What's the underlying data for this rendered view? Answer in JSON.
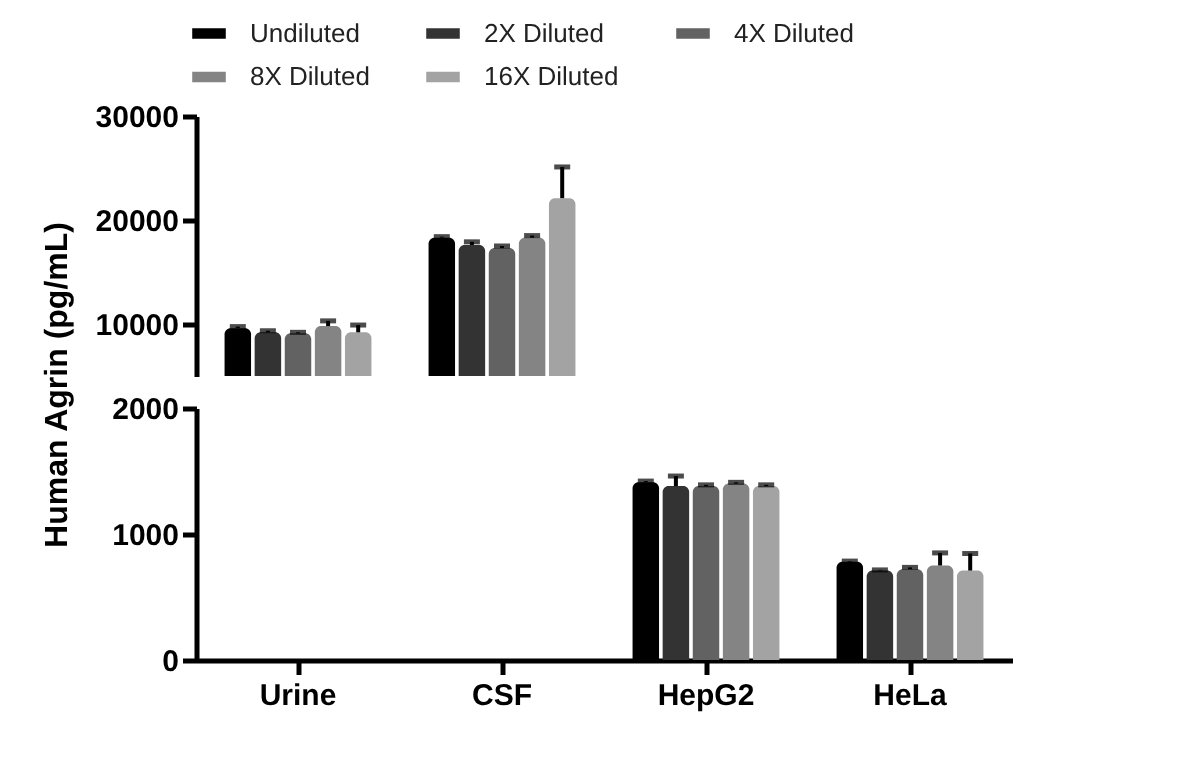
{
  "chart_data": [
    {
      "type": "bar",
      "categories": [
        null,
        null
      ],
      "ylim": [
        5000,
        30000
      ],
      "yticks": [
        10000,
        20000,
        30000
      ],
      "tick_labels": "y",
      "legend": "top",
      "series": [
        {
          "name": "Undiluted",
          "color": "#000000",
          "values": [
            9600,
            18300
          ],
          "errors": [
            [
              9600,
              9750
            ],
            [
              18300,
              18400
            ]
          ]
        },
        {
          "name": "2X Diluted",
          "color": "#333333",
          "values": [
            9200,
            17600
          ],
          "errors": [
            [
              9200,
              9350
            ],
            [
              17600,
              17900
            ]
          ]
        },
        {
          "name": "4X Diluted",
          "color": "#626262",
          "values": [
            9100,
            17300
          ],
          "errors": [
            [
              9100,
              9200
            ],
            [
              17300,
              17500
            ]
          ]
        },
        {
          "name": "8X Diluted",
          "color": "#848484",
          "values": [
            9800,
            18300
          ],
          "errors": [
            [
              9800,
              10300
            ],
            [
              18300,
              18500
            ]
          ]
        },
        {
          "name": "16X Diluted",
          "color": "#a3a3a3",
          "values": [
            9200,
            22100
          ],
          "errors": [
            [
              9200,
              9900
            ],
            [
              22100,
              25100
            ]
          ]
        }
      ]
    },
    {
      "type": "bar",
      "categories": [
        "Urine",
        "CSF",
        "HepG2",
        "HeLa"
      ],
      "ylabel": "Human Agrin (pg/mL)",
      "ylim": [
        0,
        2000
      ],
      "yticks": [
        0,
        1000,
        2000
      ],
      "series": [
        {
          "color": "#000000",
          "values": [
            null,
            null,
            1410,
            780
          ],
          "errors": [
            null,
            null,
            [
              1410,
              1420
            ],
            [
              780,
              785
            ]
          ]
        },
        {
          "color": "#333333",
          "values": [
            null,
            null,
            1380,
            710
          ],
          "errors": [
            null,
            null,
            [
              1380,
              1460
            ],
            [
              710,
              715
            ]
          ]
        },
        {
          "color": "#626262",
          "values": [
            null,
            null,
            1380,
            720
          ],
          "errors": [
            null,
            null,
            [
              1380,
              1390
            ],
            [
              720,
              735
            ]
          ]
        },
        {
          "color": "#848484",
          "values": [
            null,
            null,
            1400,
            750
          ],
          "errors": [
            null,
            null,
            [
              1400,
              1410
            ],
            [
              750,
              850
            ]
          ]
        },
        {
          "color": "#a3a3a3",
          "values": [
            null,
            null,
            1380,
            710
          ],
          "errors": [
            null,
            null,
            [
              1380,
              1390
            ],
            [
              710,
              845
            ]
          ]
        }
      ]
    }
  ]
}
